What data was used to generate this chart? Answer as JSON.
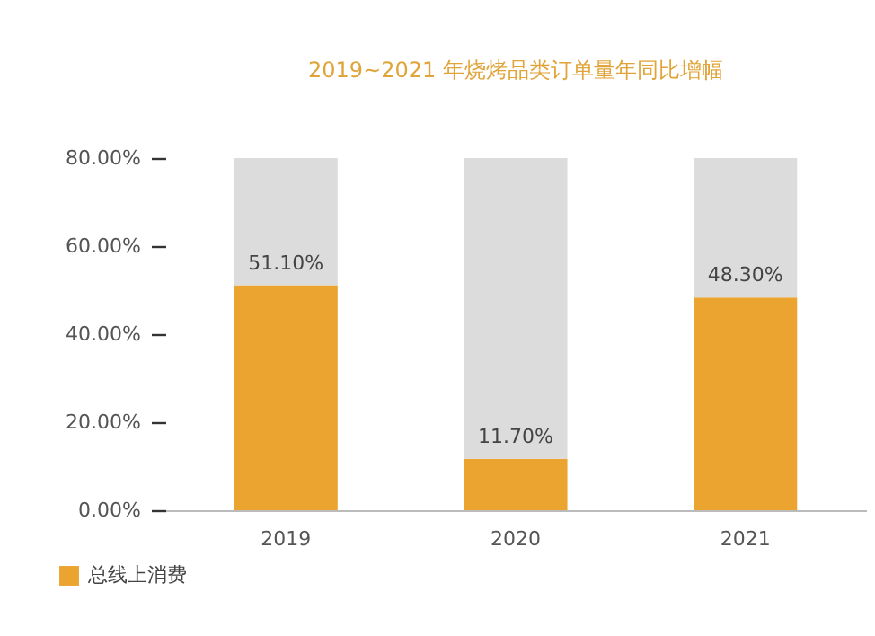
{
  "chart_data": {
    "type": "bar",
    "title": "2019~2021 年烧烤品类订单量年同比增幅",
    "categories": [
      "2019",
      "2020",
      "2021"
    ],
    "stacked": true,
    "series": [
      {
        "name": "总线上消费",
        "color": "#eba42f",
        "values": [
          51.1,
          11.7,
          48.3
        ],
        "value_labels": [
          "51.10%",
          "11.70%",
          "48.30%"
        ]
      },
      {
        "color": "#dcdcdc",
        "values": [
          28.9,
          68.3,
          31.7
        ]
      }
    ],
    "ylim": [
      0,
      80
    ],
    "yticks": [
      {
        "value": 0,
        "label": "0.00%"
      },
      {
        "value": 20,
        "label": "20.00%"
      },
      {
        "value": 40,
        "label": "40.00%"
      },
      {
        "value": 60,
        "label": "60.00%"
      },
      {
        "value": 80,
        "label": "80.00%"
      }
    ],
    "legend": "bottom left"
  }
}
